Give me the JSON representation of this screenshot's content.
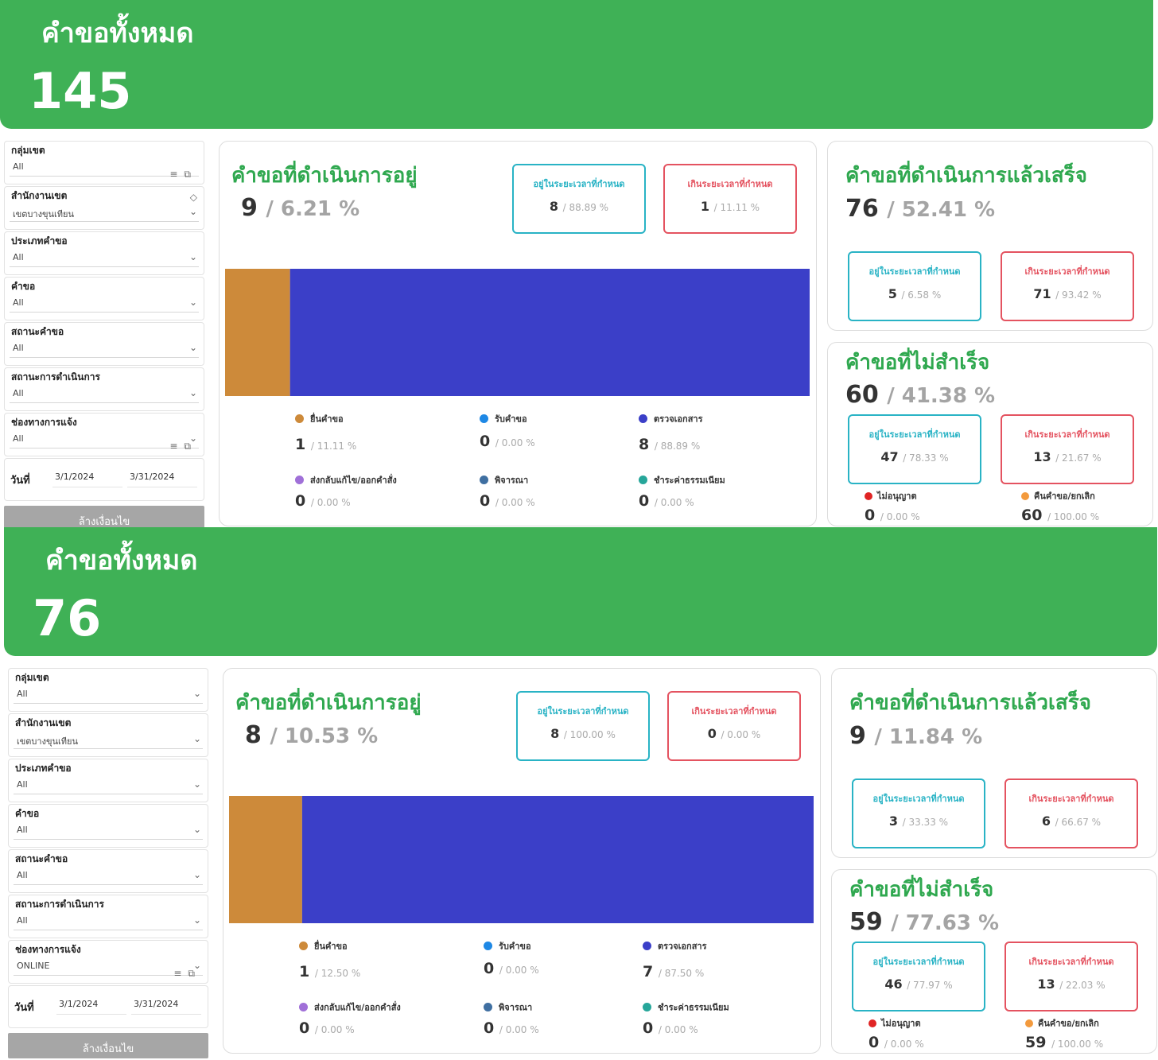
{
  "colors": {
    "banner": "#3fb156",
    "section_title": "#2fa84f",
    "in_time": "#29b3c5",
    "over_time": "#e45360",
    "bar_submit": "#cd8a3a",
    "bar_check_docs": "#3b3fc8"
  },
  "icons": [
    "filter-icon",
    "expand-icon",
    "eraser-icon",
    "chevron-down-icon",
    "calendar-icon"
  ],
  "dashboards": [
    {
      "banner": {
        "title": "คำขอทั้งหมด",
        "count": "145"
      },
      "filters": [
        {
          "label": "กลุ่มเขต",
          "value": "All"
        },
        {
          "label": "สำนักงานเขต",
          "value": "เขตบางขุนเทียน"
        },
        {
          "label": "ประเภทคำขอ",
          "value": "All"
        },
        {
          "label": "คำขอ",
          "value": "All"
        },
        {
          "label": "สถานะคำขอ",
          "value": "All"
        },
        {
          "label": "สถานะการดำเนินการ",
          "value": "All"
        },
        {
          "label": "ช่องทางการแจ้ง",
          "value": "All"
        }
      ],
      "date": {
        "label": "วันที่",
        "from": "3/1/2024",
        "to": "3/31/2024"
      },
      "clear_label": "ล้างเงื่อนไข",
      "in_progress": {
        "title": "คำขอที่ดำเนินการอยู่",
        "count": "9",
        "percent": "/ 6.21 %",
        "in_time": {
          "label": "อยู่ในระยะเวลาที่กำหนด",
          "count": "8",
          "percent": "/ 88.89 %"
        },
        "over_time": {
          "label": "เกินระยะเวลาที่กำหนด",
          "count": "1",
          "percent": "/ 11.11 %"
        },
        "legend": [
          {
            "name": "ยื่นคำขอ",
            "color": "#cd8a3a",
            "count": "1",
            "percent": "/ 11.11 %"
          },
          {
            "name": "รับคำขอ",
            "color": "#1e88e5",
            "count": "0",
            "percent": "/ 0.00 %"
          },
          {
            "name": "ตรวจเอกสาร",
            "color": "#3b3fc8",
            "count": "8",
            "percent": "/ 88.89 %"
          },
          {
            "name": "ส่งกลับแก้ไข/ออกคำสั่ง",
            "color": "#a070d8",
            "count": "0",
            "percent": "/ 0.00 %"
          },
          {
            "name": "พิจารณา",
            "color": "#3f6fa1",
            "count": "0",
            "percent": "/ 0.00 %"
          },
          {
            "name": "ชำระค่าธรรมเนียม",
            "color": "#26a69a",
            "count": "0",
            "percent": "/ 0.00 %"
          }
        ]
      },
      "done": {
        "title": "คำขอที่ดำเนินการแล้วเสร็จ",
        "count": "76",
        "percent": "/ 52.41 %",
        "in_time": {
          "label": "อยู่ในระยะเวลาที่กำหนด",
          "count": "5",
          "percent": "/ 6.58 %"
        },
        "over_time": {
          "label": "เกินระยะเวลาที่กำหนด",
          "count": "71",
          "percent": "/ 93.42 %"
        }
      },
      "failed": {
        "title": "คำขอที่ไม่สำเร็จ",
        "count": "60",
        "percent": "/ 41.38 %",
        "in_time": {
          "label": "อยู่ในระยะเวลาที่กำหนด",
          "count": "47",
          "percent": "/ 78.33 %"
        },
        "over_time": {
          "label": "เกินระยะเวลาที่กำหนด",
          "count": "13",
          "percent": "/ 21.67 %"
        },
        "denied": {
          "label": "ไม่อนุญาต",
          "color": "#e02424",
          "count": "0",
          "percent": "/ 0.00 %"
        },
        "cancelled": {
          "label": "คืนคำขอ/ยกเลิก",
          "color": "#f39a3d",
          "count": "60",
          "percent": "/ 100.00 %"
        }
      }
    },
    {
      "banner": {
        "title": "คำขอทั้งหมด",
        "count": "76"
      },
      "filters": [
        {
          "label": "กลุ่มเขต",
          "value": "All"
        },
        {
          "label": "สำนักงานเขต",
          "value": "เขตบางขุนเทียน"
        },
        {
          "label": "ประเภทคำขอ",
          "value": "All"
        },
        {
          "label": "คำขอ",
          "value": "All"
        },
        {
          "label": "สถานะคำขอ",
          "value": "All"
        },
        {
          "label": "สถานะการดำเนินการ",
          "value": "All"
        },
        {
          "label": "ช่องทางการแจ้ง",
          "value": "ONLINE"
        }
      ],
      "date": {
        "label": "วันที่",
        "from": "3/1/2024",
        "to": "3/31/2024"
      },
      "clear_label": "ล้างเงื่อนไข",
      "in_progress": {
        "title": "คำขอที่ดำเนินการอยู่",
        "count": "8",
        "percent": "/ 10.53 %",
        "in_time": {
          "label": "อยู่ในระยะเวลาที่กำหนด",
          "count": "8",
          "percent": "/ 100.00 %"
        },
        "over_time": {
          "label": "เกินระยะเวลาที่กำหนด",
          "count": "0",
          "percent": "/ 0.00 %"
        },
        "legend": [
          {
            "name": "ยื่นคำขอ",
            "color": "#cd8a3a",
            "count": "1",
            "percent": "/ 12.50 %"
          },
          {
            "name": "รับคำขอ",
            "color": "#1e88e5",
            "count": "0",
            "percent": "/ 0.00 %"
          },
          {
            "name": "ตรวจเอกสาร",
            "color": "#3b3fc8",
            "count": "7",
            "percent": "/ 87.50 %"
          },
          {
            "name": "ส่งกลับแก้ไข/ออกคำสั่ง",
            "color": "#a070d8",
            "count": "0",
            "percent": "/ 0.00 %"
          },
          {
            "name": "พิจารณา",
            "color": "#3f6fa1",
            "count": "0",
            "percent": "/ 0.00 %"
          },
          {
            "name": "ชำระค่าธรรมเนียม",
            "color": "#26a69a",
            "count": "0",
            "percent": "/ 0.00 %"
          }
        ]
      },
      "done": {
        "title": "คำขอที่ดำเนินการแล้วเสร็จ",
        "count": "9",
        "percent": "/ 11.84 %",
        "in_time": {
          "label": "อยู่ในระยะเวลาที่กำหนด",
          "count": "3",
          "percent": "/ 33.33 %"
        },
        "over_time": {
          "label": "เกินระยะเวลาที่กำหนด",
          "count": "6",
          "percent": "/ 66.67 %"
        }
      },
      "failed": {
        "title": "คำขอที่ไม่สำเร็จ",
        "count": "59",
        "percent": "/ 77.63 %",
        "in_time": {
          "label": "อยู่ในระยะเวลาที่กำหนด",
          "count": "46",
          "percent": "/ 77.97 %"
        },
        "over_time": {
          "label": "เกินระยะเวลาที่กำหนด",
          "count": "13",
          "percent": "/ 22.03 %"
        },
        "denied": {
          "label": "ไม่อนุญาต",
          "color": "#e02424",
          "count": "0",
          "percent": "/ 0.00 %"
        },
        "cancelled": {
          "label": "คืนคำขอ/ยกเลิก",
          "color": "#f39a3d",
          "count": "59",
          "percent": "/ 100.00 %"
        }
      }
    }
  ],
  "chart_data": [
    {
      "type": "bar",
      "stacked": true,
      "orientation": "horizontal",
      "categories": [
        ""
      ],
      "series": [
        {
          "name": "ยื่นคำขอ",
          "values": [
            1
          ]
        },
        {
          "name": "รับคำขอ",
          "values": [
            0
          ]
        },
        {
          "name": "ตรวจเอกสาร",
          "values": [
            8
          ]
        },
        {
          "name": "ส่งกลับแก้ไข/ออกคำสั่ง",
          "values": [
            0
          ]
        },
        {
          "name": "พิจารณา",
          "values": [
            0
          ]
        },
        {
          "name": "ชำระค่าธรรมเนียม",
          "values": [
            0
          ]
        }
      ],
      "title": "",
      "xlabel": "",
      "ylabel": "",
      "grid": false,
      "legend": "bottom"
    },
    {
      "type": "bar",
      "stacked": true,
      "orientation": "horizontal",
      "categories": [
        ""
      ],
      "series": [
        {
          "name": "ยื่นคำขอ",
          "values": [
            1
          ]
        },
        {
          "name": "รับคำขอ",
          "values": [
            0
          ]
        },
        {
          "name": "ตรวจเอกสาร",
          "values": [
            7
          ]
        },
        {
          "name": "ส่งกลับแก้ไข/ออกคำสั่ง",
          "values": [
            0
          ]
        },
        {
          "name": "พิจารณา",
          "values": [
            0
          ]
        },
        {
          "name": "ชำระค่าธรรมเนียม",
          "values": [
            0
          ]
        }
      ],
      "title": "",
      "xlabel": "",
      "ylabel": "",
      "grid": false,
      "legend": "bottom"
    }
  ]
}
